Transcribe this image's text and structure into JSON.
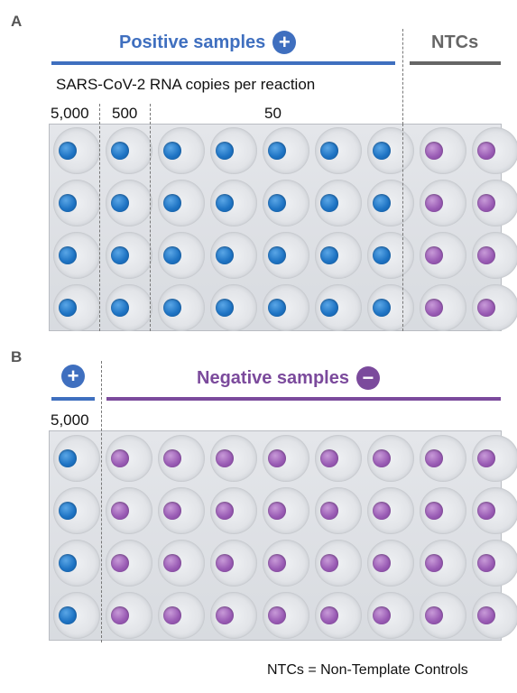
{
  "panel_a": {
    "letter": "A",
    "positive_title": "Positive samples",
    "plus_symbol": "+",
    "ntc_title": "NTCs",
    "subtitle": "SARS-CoV-2 RNA copies per reaction",
    "dose_labels": [
      "5,000",
      "500",
      "50"
    ],
    "rows": 4,
    "columns": [
      "blue",
      "blue",
      "blue",
      "blue",
      "blue",
      "blue",
      "blue",
      "purple",
      "purple"
    ]
  },
  "panel_b": {
    "letter": "B",
    "plus_symbol": "+",
    "negative_title": "Negative samples",
    "minus_symbol": "−",
    "dose_label": "5,000",
    "rows": 4,
    "columns": [
      "blue",
      "purple",
      "purple",
      "purple",
      "purple",
      "purple",
      "purple",
      "purple",
      "purple"
    ]
  },
  "footer": "NTCs = Non-Template Controls",
  "colors": {
    "positive": "#3f6fbf",
    "negative": "#7b4a9c",
    "ntc": "#666666"
  }
}
